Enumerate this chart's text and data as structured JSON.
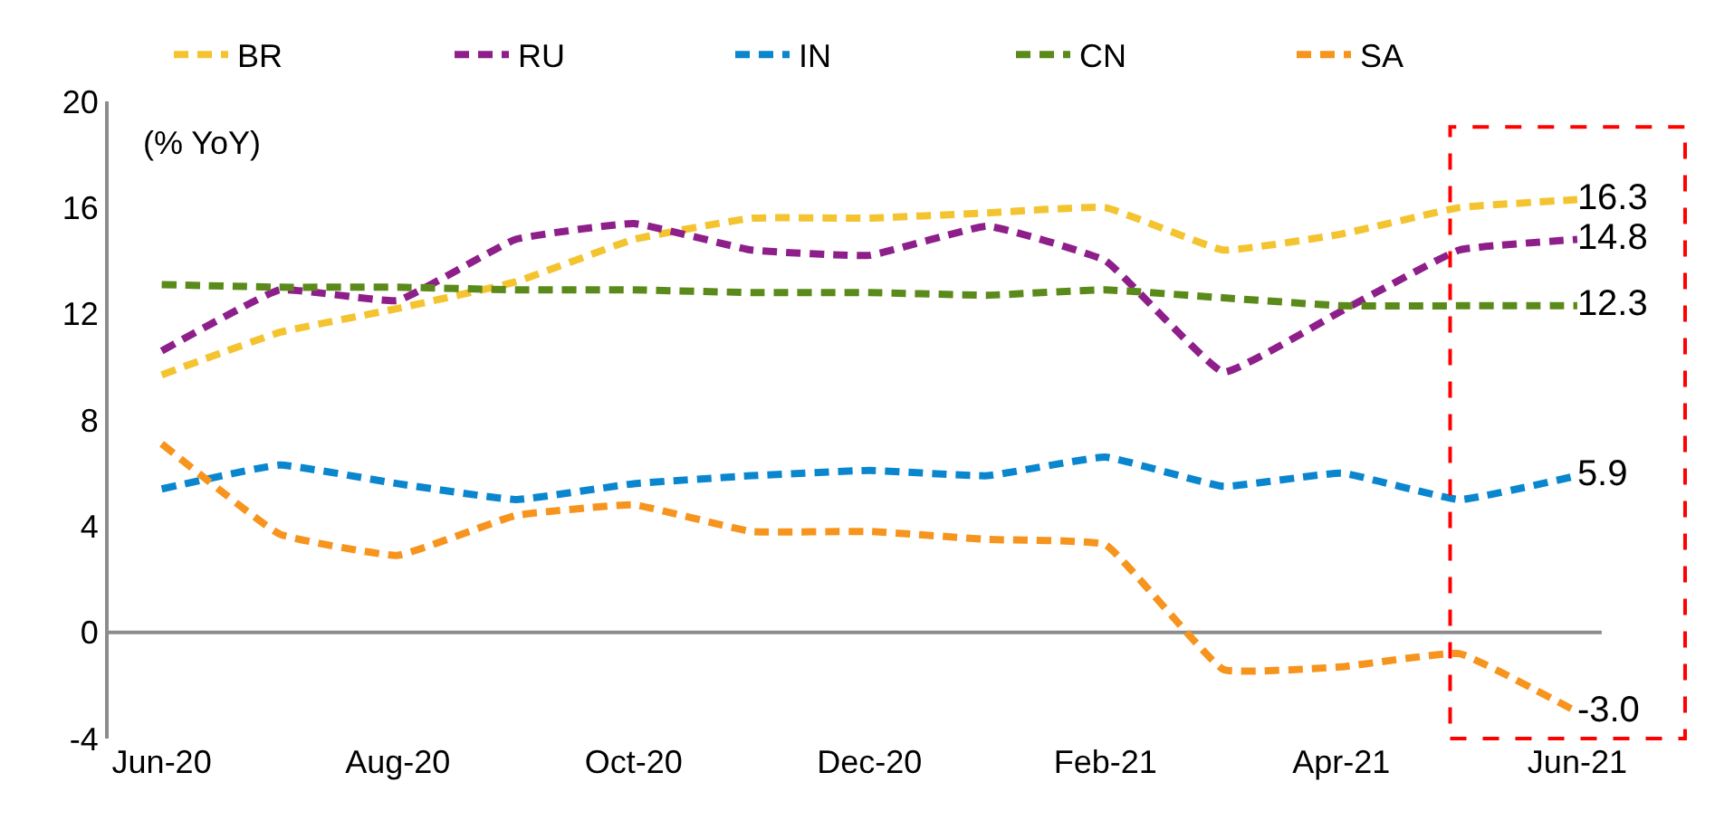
{
  "chart_data": {
    "type": "line",
    "ylabel": "(% YoY)",
    "categories": [
      "Jun-20",
      null,
      "Aug-20",
      null,
      "Oct-20",
      null,
      "Dec-20",
      null,
      "Feb-21",
      null,
      "Apr-21",
      null,
      "Jun-21"
    ],
    "series": [
      {
        "name": "BR",
        "color": "#f4c430",
        "values": [
          9.7,
          11.3,
          12.2,
          13.2,
          14.8,
          15.6,
          15.6,
          15.8,
          16.0,
          14.4,
          15.0,
          16.0,
          16.3
        ],
        "value_labels": [
          null,
          null,
          null,
          null,
          null,
          null,
          null,
          null,
          null,
          null,
          null,
          null,
          "16.3"
        ]
      },
      {
        "name": "RU",
        "color": "#8e1f8a",
        "values": [
          10.6,
          12.9,
          12.5,
          14.8,
          15.4,
          14.4,
          14.2,
          15.3,
          14.0,
          9.8,
          12.1,
          14.4,
          14.8
        ],
        "value_labels": [
          null,
          null,
          null,
          null,
          null,
          null,
          null,
          null,
          null,
          null,
          null,
          null,
          "14.8"
        ]
      },
      {
        "name": "IN",
        "color": "#0a86cf",
        "values": [
          5.4,
          6.3,
          5.6,
          5.0,
          5.6,
          5.9,
          6.1,
          5.9,
          6.6,
          5.5,
          6.0,
          5.0,
          5.9
        ],
        "value_labels": [
          null,
          null,
          null,
          null,
          null,
          null,
          null,
          null,
          null,
          null,
          null,
          null,
          "5.9"
        ]
      },
      {
        "name": "CN",
        "color": "#5a8a1a",
        "values": [
          13.1,
          13.0,
          13.0,
          12.9,
          12.9,
          12.8,
          12.8,
          12.7,
          12.9,
          12.6,
          12.3,
          12.3,
          12.3
        ],
        "value_labels": [
          null,
          null,
          null,
          null,
          null,
          null,
          null,
          null,
          null,
          null,
          null,
          null,
          "12.3"
        ]
      },
      {
        "name": "SA",
        "color": "#f7941d",
        "values": [
          7.1,
          3.7,
          2.9,
          4.4,
          4.8,
          3.8,
          3.8,
          3.5,
          3.3,
          -1.4,
          -1.3,
          -0.8,
          -3.0
        ],
        "value_labels": [
          null,
          null,
          null,
          null,
          null,
          null,
          null,
          null,
          null,
          null,
          null,
          null,
          "-3.0"
        ]
      }
    ],
    "ylim": [
      -4,
      20
    ],
    "yticks": [
      -4,
      0,
      4,
      8,
      12,
      16,
      20
    ],
    "grid": false,
    "legend": "top",
    "ref_lines": [
      {
        "axis": "y",
        "value": 0,
        "color": "#8c8c8c"
      }
    ],
    "line_style": "dashed",
    "marker": "none"
  }
}
